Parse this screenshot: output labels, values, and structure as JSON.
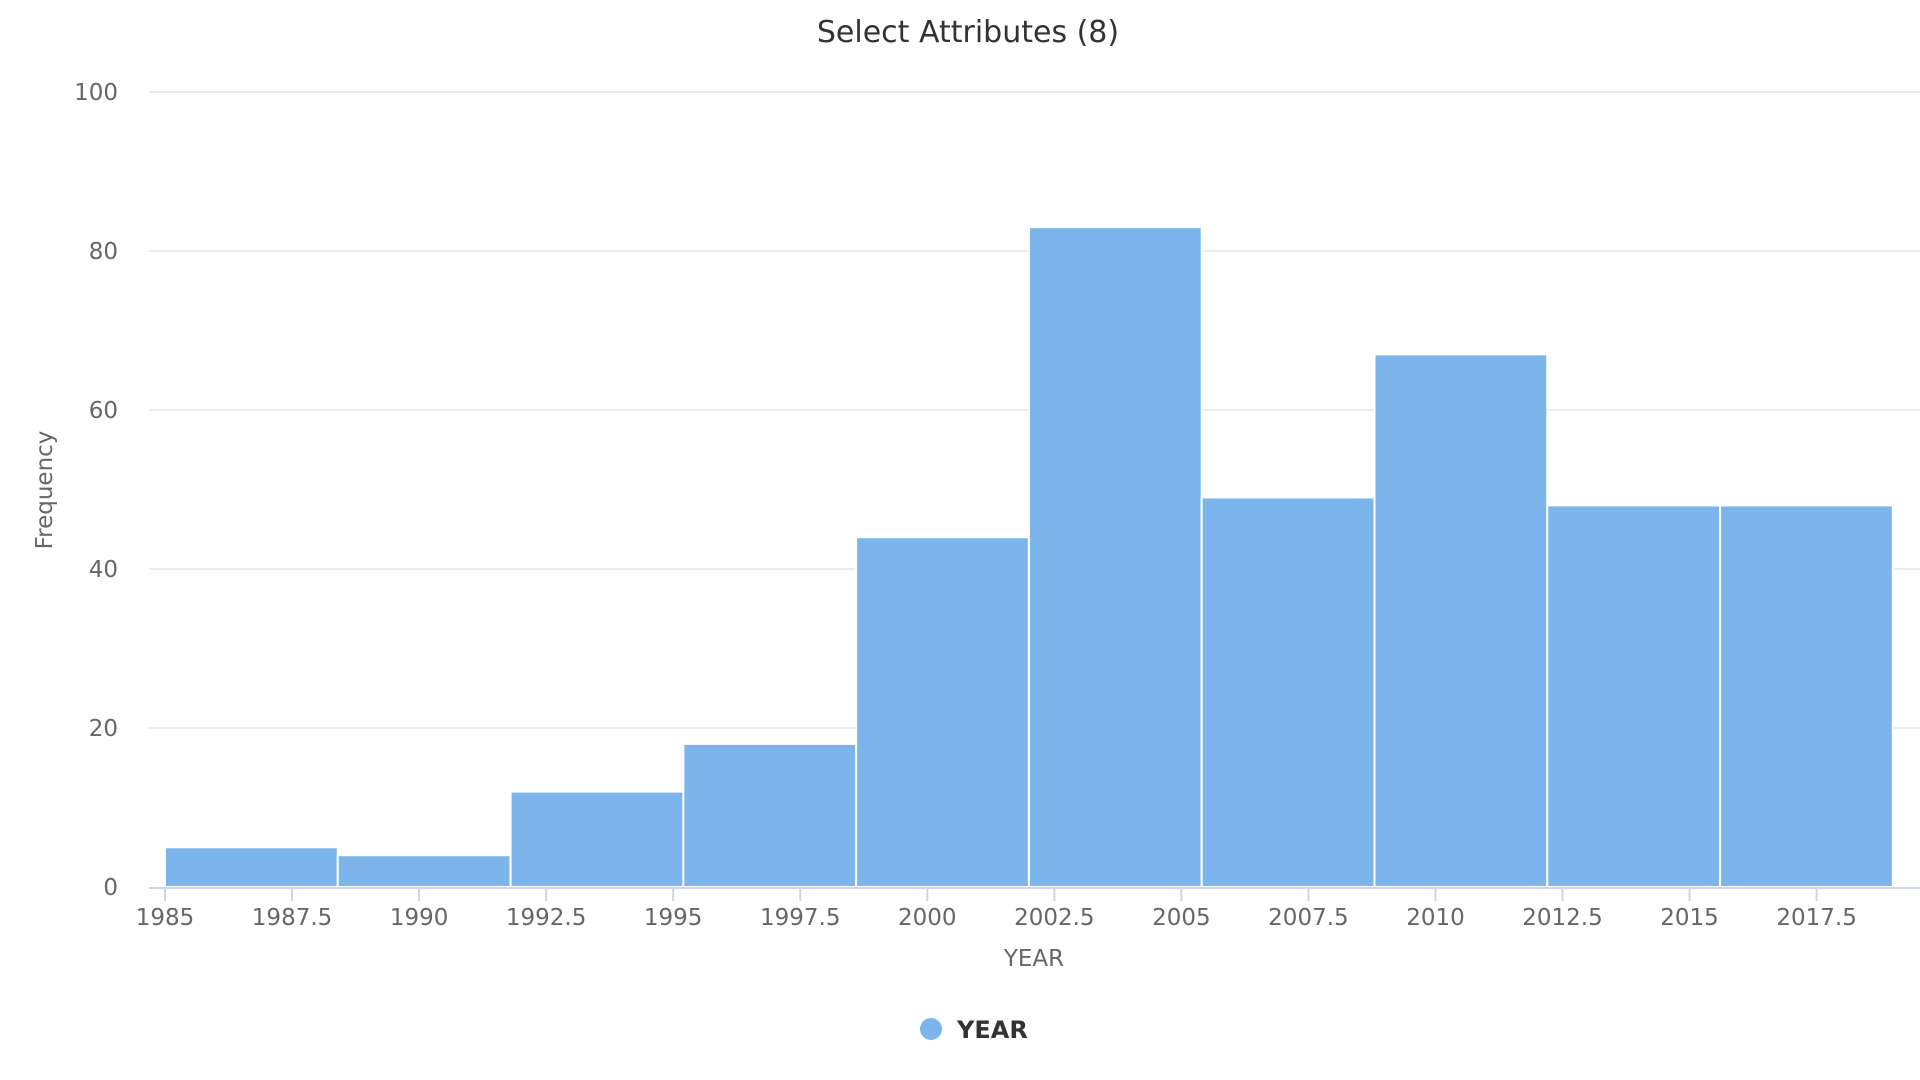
{
  "chart_data": {
    "type": "bar",
    "title": "Select Attributes (8)",
    "xlabel": "YEAR",
    "ylabel": "Frequency",
    "xlim": [
      1985,
      2019.2
    ],
    "ylim": [
      0,
      100
    ],
    "x_ticks": [
      "1985",
      "1987.5",
      "1990",
      "1992.5",
      "1995",
      "1997.5",
      "2000",
      "2002.5",
      "2005",
      "2007.5",
      "2010",
      "2012.5",
      "2015",
      "2017.5"
    ],
    "y_ticks": [
      "0",
      "20",
      "40",
      "60",
      "80",
      "100"
    ],
    "bins": [
      {
        "from": 1985,
        "to": 1988.4,
        "value": 5
      },
      {
        "from": 1988.4,
        "to": 1991.8,
        "value": 4
      },
      {
        "from": 1991.8,
        "to": 1995.2,
        "value": 12
      },
      {
        "from": 1995.2,
        "to": 1998.6,
        "value": 18
      },
      {
        "from": 1998.6,
        "to": 2002.0,
        "value": 44
      },
      {
        "from": 2002.0,
        "to": 2005.4,
        "value": 83
      },
      {
        "from": 2005.4,
        "to": 2008.8,
        "value": 49
      },
      {
        "from": 2008.8,
        "to": 2012.2,
        "value": 67
      },
      {
        "from": 2012.2,
        "to": 2015.6,
        "value": 48
      },
      {
        "from": 2015.6,
        "to": 2019.0,
        "value": 48
      }
    ],
    "series": [
      {
        "name": "YEAR",
        "color": "#7cb5ec"
      }
    ],
    "grid": true,
    "legend_position": "bottom-center"
  }
}
